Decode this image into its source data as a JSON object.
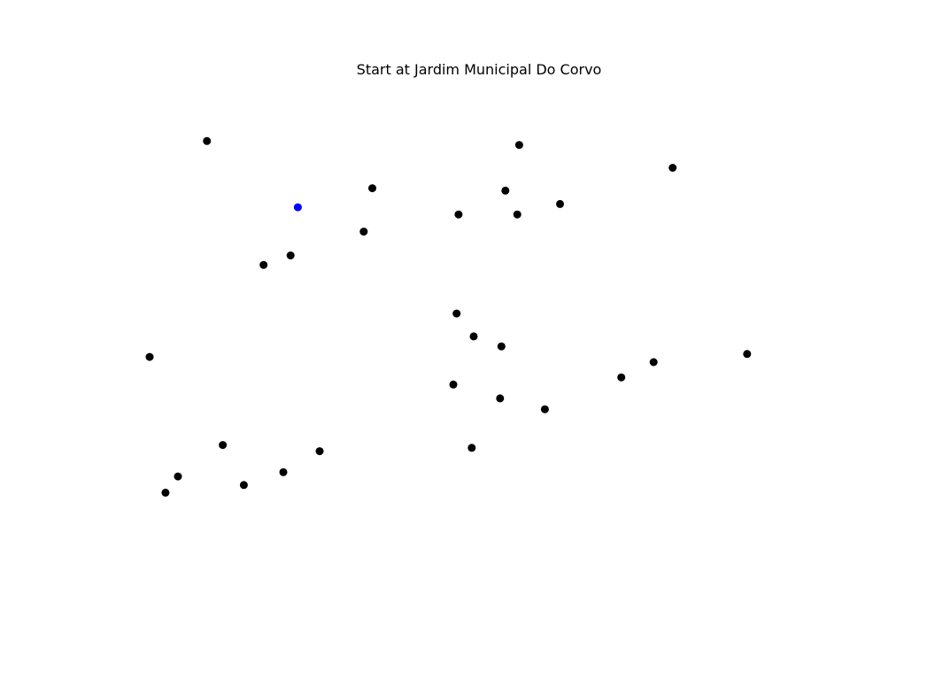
{
  "chart_data": {
    "type": "scatter",
    "title": "Start at Jardim Municipal Do Corvo",
    "xlabel": "",
    "ylabel": "",
    "axes_visible": false,
    "grid": false,
    "legend": "none",
    "xlim": [
      0,
      100
    ],
    "ylim": [
      0,
      100
    ],
    "series": [
      {
        "role": "start",
        "color": "#0000ff",
        "points": [
          {
            "x": 22.5,
            "y": 78.6
          }
        ]
      },
      {
        "role": "other",
        "color": "#000000",
        "points": [
          {
            "x": 8.7,
            "y": 92.5
          },
          {
            "x": 56.1,
            "y": 91.7
          },
          {
            "x": 79.4,
            "y": 86.9
          },
          {
            "x": 33.8,
            "y": 82.6
          },
          {
            "x": 54.0,
            "y": 82.1
          },
          {
            "x": 62.3,
            "y": 79.3
          },
          {
            "x": 46.9,
            "y": 77.1
          },
          {
            "x": 55.8,
            "y": 77.1
          },
          {
            "x": 32.5,
            "y": 73.5
          },
          {
            "x": 21.4,
            "y": 68.5
          },
          {
            "x": 17.3,
            "y": 66.5
          },
          {
            "x": 46.6,
            "y": 56.3
          },
          {
            "x": 49.2,
            "y": 51.5
          },
          {
            "x": 53.4,
            "y": 49.4
          },
          {
            "x": 0.0,
            "y": 47.2
          },
          {
            "x": 90.7,
            "y": 47.8
          },
          {
            "x": 76.5,
            "y": 46.1
          },
          {
            "x": 71.6,
            "y": 42.9
          },
          {
            "x": 46.1,
            "y": 41.4
          },
          {
            "x": 53.2,
            "y": 38.5
          },
          {
            "x": 60.0,
            "y": 36.2
          },
          {
            "x": 11.1,
            "y": 28.7
          },
          {
            "x": 25.8,
            "y": 27.4
          },
          {
            "x": 48.9,
            "y": 28.1
          },
          {
            "x": 20.3,
            "y": 23.0
          },
          {
            "x": 4.3,
            "y": 22.1
          },
          {
            "x": 14.3,
            "y": 20.3
          },
          {
            "x": 2.4,
            "y": 18.7
          }
        ]
      }
    ]
  }
}
